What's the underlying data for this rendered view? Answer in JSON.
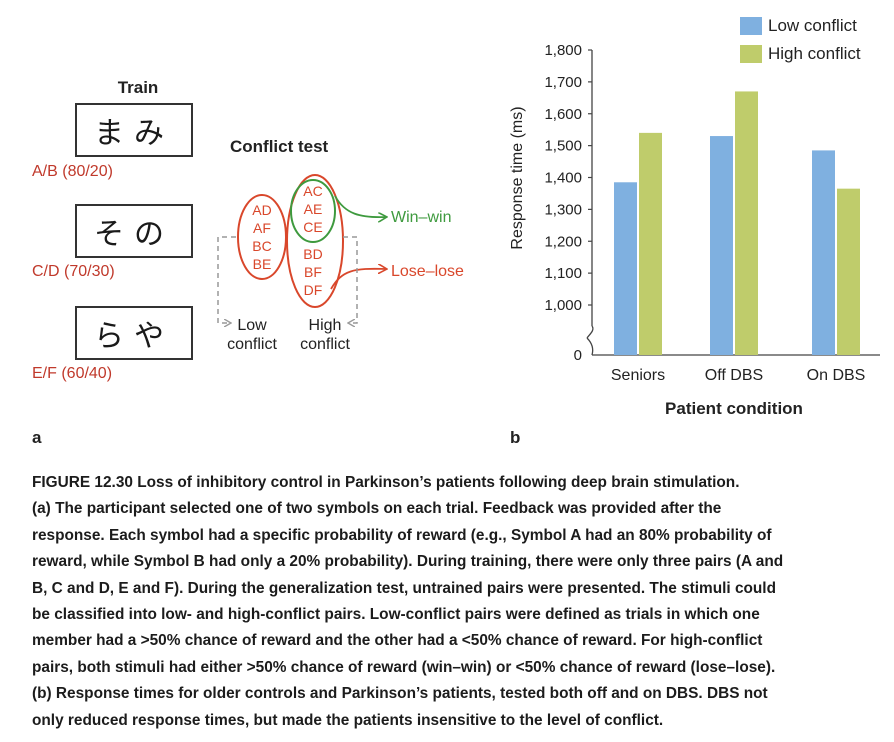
{
  "panel_a": {
    "train_title": "Train",
    "train_pairs": [
      {
        "symbols": "まみ",
        "label": "A/B (80/20)"
      },
      {
        "symbols": "その",
        "label": "C/D (70/30)"
      },
      {
        "symbols": "らや",
        "label": "E/F (60/40)"
      }
    ],
    "conflict_title": "Conflict test",
    "low_conflict_pairs": [
      "AD",
      "AF",
      "BC",
      "BE"
    ],
    "win_win_pairs": [
      "AC",
      "AE",
      "CE"
    ],
    "lose_lose_pairs": [
      "BD",
      "BF",
      "DF"
    ],
    "win_win_label": "Win–win",
    "lose_lose_label": "Lose–lose",
    "low_conflict_label_1": "Low",
    "low_conflict_label_2": "conflict",
    "high_conflict_label_1": "High",
    "high_conflict_label_2": "conflict",
    "letter": "a",
    "colors": {
      "red": "#d9472b",
      "green": "#3e9a3e",
      "dashed": "#999999"
    }
  },
  "panel_b": {
    "letter": "b",
    "chart_data": {
      "type": "bar",
      "categories": [
        "Seniors",
        "Off DBS",
        "On DBS"
      ],
      "series": [
        {
          "name": "Low conflict",
          "color": "#7fb0e0",
          "values": [
            1385,
            1530,
            1485
          ]
        },
        {
          "name": "High conflict",
          "color": "#bfcc6b",
          "values": [
            1540,
            1670,
            1365
          ]
        }
      ],
      "ylabel": "Response time (ms)",
      "xlabel": "Patient condition",
      "ylim": [
        1000,
        1800
      ],
      "yticks": [
        1000,
        1100,
        1200,
        1300,
        1400,
        1500,
        1600,
        1700,
        1800
      ],
      "ytick_labels": [
        "1,000",
        "1,100",
        "1,200",
        "1,300",
        "1,400",
        "1,500",
        "1,600",
        "1,700",
        "1,800"
      ],
      "axis_break_label": "0",
      "legend": "top-right"
    }
  },
  "caption": {
    "title": "FIGURE 12.30 Loss of inhibitory control in Parkinson’s patients following deep brain stimulation.",
    "lines": [
      "(a) The participant selected one of two symbols on each trial. Feedback was provided after the",
      "response. Each symbol had a specific probability of reward (e.g., Symbol A had an 80% probability of",
      "reward, while Symbol B had only a 20% probability). During training, there were only three pairs (A and",
      "B, C and D, E and F). During the generalization test, untrained pairs were presented. The stimuli could",
      "be classified into low- and high-conflict pairs. Low-conflict pairs were defined as trials in which one",
      "member had a >50% chance of reward and the other had a <50% chance of reward. For high-conflict",
      "pairs, both stimuli had either >50% chance of reward (win–win) or <50% chance of reward (lose–lose).",
      "(b) Response times for older controls and Parkinson’s patients, tested both off and on DBS. DBS not",
      "only reduced response times, but made the patients insensitive to the level of conflict."
    ]
  }
}
